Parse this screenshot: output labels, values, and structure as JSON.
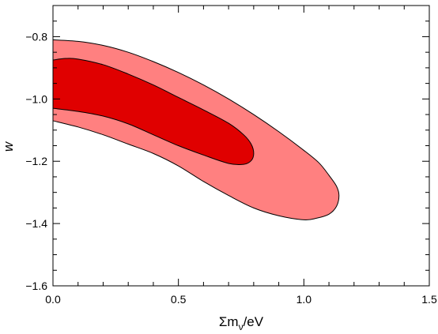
{
  "chart_data": {
    "type": "area",
    "title": "",
    "xlabel": "Σm",
    "xlabel_sub": "ν",
    "xlabel_suffix": "/eV",
    "ylabel": "w",
    "xlim": [
      0.0,
      1.5
    ],
    "ylim": [
      -1.6,
      -0.7
    ],
    "x_ticks": [
      0.0,
      0.5,
      1.0,
      1.5
    ],
    "x_tick_labels": [
      "0.0",
      "0.5",
      "1.0",
      "1.5"
    ],
    "y_ticks": [
      -1.6,
      -1.4,
      -1.2,
      -1.0,
      -0.8
    ],
    "y_tick_labels": [
      "−1.6",
      "−1.4",
      "−1.2",
      "−1.0",
      "−0.8"
    ],
    "x_minor_step": 0.1,
    "y_minor_step": 0.05,
    "grid": false,
    "series": [
      {
        "fill": "#ff8080",
        "points": [
          [
            0.0,
            -0.81
          ],
          [
            0.1,
            -0.815
          ],
          [
            0.2,
            -0.828
          ],
          [
            0.3,
            -0.85
          ],
          [
            0.4,
            -0.88
          ],
          [
            0.5,
            -0.915
          ],
          [
            0.6,
            -0.955
          ],
          [
            0.7,
            -1.0
          ],
          [
            0.8,
            -1.05
          ],
          [
            0.9,
            -1.105
          ],
          [
            1.0,
            -1.165
          ],
          [
            1.06,
            -1.205
          ],
          [
            1.1,
            -1.245
          ],
          [
            1.13,
            -1.28
          ],
          [
            1.14,
            -1.31
          ],
          [
            1.13,
            -1.345
          ],
          [
            1.1,
            -1.37
          ],
          [
            1.05,
            -1.383
          ],
          [
            1.0,
            -1.388
          ],
          [
            0.9,
            -1.375
          ],
          [
            0.8,
            -1.35
          ],
          [
            0.7,
            -1.31
          ],
          [
            0.6,
            -1.265
          ],
          [
            0.5,
            -1.215
          ],
          [
            0.4,
            -1.175
          ],
          [
            0.3,
            -1.145
          ],
          [
            0.2,
            -1.115
          ],
          [
            0.1,
            -1.09
          ],
          [
            0.0,
            -1.07
          ]
        ]
      },
      {
        "fill": "#e00000",
        "points": [
          [
            0.0,
            -0.875
          ],
          [
            0.05,
            -0.87
          ],
          [
            0.1,
            -0.872
          ],
          [
            0.2,
            -0.89
          ],
          [
            0.3,
            -0.92
          ],
          [
            0.4,
            -0.955
          ],
          [
            0.5,
            -0.995
          ],
          [
            0.6,
            -1.035
          ],
          [
            0.7,
            -1.078
          ],
          [
            0.76,
            -1.115
          ],
          [
            0.79,
            -1.145
          ],
          [
            0.8,
            -1.175
          ],
          [
            0.79,
            -1.198
          ],
          [
            0.76,
            -1.21
          ],
          [
            0.7,
            -1.207
          ],
          [
            0.6,
            -1.18
          ],
          [
            0.5,
            -1.15
          ],
          [
            0.4,
            -1.115
          ],
          [
            0.3,
            -1.08
          ],
          [
            0.2,
            -1.055
          ],
          [
            0.1,
            -1.04
          ],
          [
            0.0,
            -1.03
          ]
        ]
      }
    ]
  }
}
